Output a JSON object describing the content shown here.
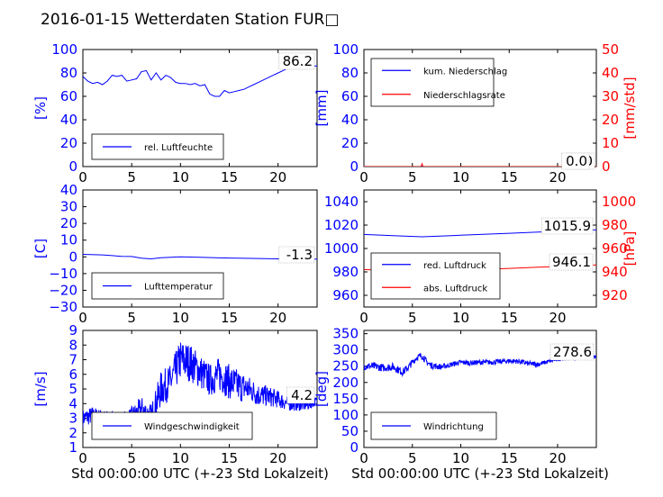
{
  "title": "2016-01-15 Wetterdaten Station FUR□",
  "colors": {
    "primary": "#0000ff",
    "secondary": "#ff0000",
    "axis": "#000000"
  },
  "chart_data": [
    {
      "type": "line",
      "panel": "top-left",
      "ylabel": "[%]",
      "xlabel": "",
      "xlim": [
        0,
        24
      ],
      "ylim": [
        0,
        100
      ],
      "xticks": [
        "0",
        "5",
        "10",
        "15",
        "20"
      ],
      "yticks": [
        "0",
        "20",
        "40",
        "60",
        "80",
        "100"
      ],
      "legend": [
        "rel. Luftfeuchte"
      ],
      "legend_position": "lower-left",
      "annotation": "86.2",
      "series": [
        {
          "name": "rel. Luftfeuchte",
          "color": "#0000ff",
          "x": [
            0,
            0.5,
            1,
            1.5,
            2,
            2.5,
            3,
            3.5,
            4,
            4.5,
            5,
            5.5,
            6,
            6.5,
            7,
            7.5,
            8,
            8.5,
            9,
            9.5,
            10,
            10.5,
            11,
            11.5,
            12,
            12.5,
            13,
            13.5,
            14,
            14.5,
            15,
            15.5,
            16,
            16.5,
            17,
            17.5,
            18,
            18.5,
            19,
            19.5,
            20,
            20.5,
            21,
            21.5,
            22,
            22.5,
            23,
            23.5,
            24
          ],
          "y": [
            77,
            73,
            71,
            72,
            70,
            73,
            78,
            77,
            78,
            73,
            74,
            75,
            81,
            82,
            74,
            80,
            74,
            78,
            76,
            72,
            71,
            71,
            70,
            71,
            69,
            70,
            62,
            60,
            60,
            65,
            63,
            64,
            65,
            66,
            68,
            70,
            72,
            74,
            76,
            78,
            80,
            82,
            84,
            85,
            85,
            86,
            86,
            86,
            86
          ]
        }
      ]
    },
    {
      "type": "line",
      "panel": "top-right",
      "ylabel": "[mm]",
      "y2label": "[mm/std]",
      "xlim": [
        0,
        24
      ],
      "ylim": [
        0,
        100
      ],
      "y2lim": [
        0,
        50
      ],
      "xticks": [
        "0",
        "5",
        "10",
        "15",
        "20"
      ],
      "yticks": [
        "0",
        "20",
        "40",
        "60",
        "80",
        "100"
      ],
      "y2ticks": [
        "0",
        "10",
        "20",
        "30",
        "40",
        "50"
      ],
      "legend": [
        "kum. Niederschlag",
        "Niederschlagsrate"
      ],
      "legend_position": "upper-left",
      "annotations": [
        "0.0",
        "0.0"
      ],
      "series": [
        {
          "name": "kum. Niederschlag",
          "color": "#0000ff",
          "axis": "left",
          "x": [
            0,
            24
          ],
          "y": [
            0,
            0
          ]
        },
        {
          "name": "Niederschlagsrate",
          "color": "#ff0000",
          "axis": "right",
          "x": [
            0,
            5.9,
            6.0,
            6.1,
            24
          ],
          "y": [
            0,
            0,
            1.2,
            0,
            0
          ]
        }
      ]
    },
    {
      "type": "line",
      "panel": "middle-left",
      "ylabel": "[C]",
      "xlim": [
        0,
        24
      ],
      "ylim": [
        -30,
        40
      ],
      "xticks": [
        "0",
        "5",
        "10",
        "15",
        "20"
      ],
      "yticks": [
        "−30",
        "−20",
        "−10",
        "0",
        "10",
        "20",
        "30",
        "40"
      ],
      "legend": [
        "Lufttemperatur"
      ],
      "legend_position": "lower-left",
      "annotation": "-1.3",
      "series": [
        {
          "name": "Lufttemperatur",
          "color": "#0000ff",
          "x": [
            0,
            2,
            4,
            5,
            6,
            7,
            8,
            10,
            12,
            14,
            16,
            18,
            20,
            22,
            24
          ],
          "y": [
            1.5,
            1.2,
            0.3,
            0.2,
            -0.8,
            -1.2,
            -0.5,
            0,
            -0.3,
            -0.6,
            -0.8,
            -1.0,
            -1.2,
            -1.6,
            -1.3
          ]
        }
      ]
    },
    {
      "type": "line",
      "panel": "middle-right",
      "ylabel": "",
      "y2label": "[hPa]",
      "xlim": [
        0,
        24
      ],
      "ylim": [
        950,
        1050
      ],
      "y2lim": [
        910,
        1010
      ],
      "xticks": [
        "0",
        "5",
        "10",
        "15",
        "20"
      ],
      "yticks": [
        "960",
        "980",
        "1000",
        "1020",
        "1040"
      ],
      "y2ticks": [
        "920",
        "940",
        "960",
        "980",
        "1000"
      ],
      "legend": [
        "red. Luftdruck",
        "abs. Luftdruck"
      ],
      "legend_position": "lower-left",
      "annotations": [
        "1015.9",
        "946.1"
      ],
      "series": [
        {
          "name": "red. Luftdruck",
          "color": "#0000ff",
          "axis": "left",
          "x": [
            0,
            3,
            6,
            9,
            12,
            15,
            18,
            21,
            24
          ],
          "y": [
            1012,
            1011,
            1010,
            1011,
            1012,
            1013,
            1014,
            1015,
            1016
          ]
        },
        {
          "name": "abs. Luftdruck",
          "color": "#ff0000",
          "axis": "right",
          "x": [
            0,
            3,
            6,
            9,
            12,
            15,
            18,
            21,
            24
          ],
          "y": [
            942,
            941,
            941,
            941,
            942,
            943,
            944,
            945,
            946
          ]
        }
      ]
    },
    {
      "type": "line",
      "panel": "bottom-left",
      "ylabel": "[m/s]",
      "xlabel": "Std 00:00:00 UTC (+-23 Std Lokalzeit)",
      "xlim": [
        0,
        24
      ],
      "ylim": [
        1,
        9
      ],
      "xticks": [
        "0",
        "5",
        "10",
        "15",
        "20"
      ],
      "yticks": [
        "1",
        "2",
        "3",
        "4",
        "5",
        "6",
        "7",
        "8",
        "9"
      ],
      "legend": [
        "Windgeschwindigkeit"
      ],
      "legend_position": "lower-left",
      "annotation": "4.2",
      "series": [
        {
          "name": "Windgeschwindigkeit",
          "color": "#0000ff",
          "x": [
            0,
            1,
            2,
            3,
            4,
            5,
            6,
            7,
            8,
            9,
            10,
            11,
            12,
            13,
            14,
            15,
            16,
            17,
            18,
            19,
            20,
            21,
            22,
            23,
            24
          ],
          "y": [
            3.0,
            3.2,
            3.0,
            2.8,
            2.6,
            3.0,
            3.6,
            3.0,
            5.0,
            5.5,
            7.0,
            6.8,
            6.2,
            5.6,
            6.0,
            5.5,
            5.2,
            5.0,
            4.6,
            4.5,
            4.3,
            4.0,
            3.9,
            3.9,
            4.2
          ],
          "noise": [
            0.6,
            0.6,
            0.6,
            0.7,
            0.8,
            0.8,
            0.9,
            1.0,
            1.2,
            1.2,
            1.4,
            1.3,
            1.2,
            1.1,
            1.2,
            1.2,
            1.1,
            0.9,
            0.8,
            0.7,
            0.6,
            0.5,
            0.4,
            0.4,
            0.3
          ]
        }
      ]
    },
    {
      "type": "line",
      "panel": "bottom-right",
      "ylabel": "[deg]",
      "xlabel": "Std 00:00:00 UTC (+-23 Std Lokalzeit)",
      "xlim": [
        0,
        24
      ],
      "ylim": [
        0,
        360
      ],
      "xticks": [
        "0",
        "5",
        "10",
        "15",
        "20"
      ],
      "yticks": [
        "0",
        "50",
        "100",
        "150",
        "200",
        "250",
        "300",
        "350"
      ],
      "legend": [
        "Windrichtung"
      ],
      "legend_position": "lower-left",
      "annotation": "278.6",
      "series": [
        {
          "name": "Windrichtung",
          "color": "#0000ff",
          "x": [
            0,
            1,
            2,
            3,
            4,
            4.5,
            5,
            5.5,
            6,
            6.5,
            7,
            8,
            9,
            10,
            11,
            12,
            13,
            14,
            15,
            16,
            17,
            18,
            19,
            20,
            21,
            22,
            23,
            24
          ],
          "y": [
            250,
            250,
            245,
            248,
            232,
            244,
            262,
            278,
            282,
            262,
            252,
            248,
            255,
            262,
            260,
            262,
            262,
            264,
            266,
            265,
            258,
            256,
            264,
            272,
            274,
            275,
            276,
            278
          ],
          "noise": [
            12,
            12,
            12,
            12,
            12,
            12,
            10,
            10,
            10,
            10,
            10,
            9,
            8,
            8,
            8,
            8,
            8,
            8,
            8,
            8,
            8,
            8,
            6,
            6,
            6,
            5,
            5,
            5
          ]
        }
      ]
    }
  ]
}
